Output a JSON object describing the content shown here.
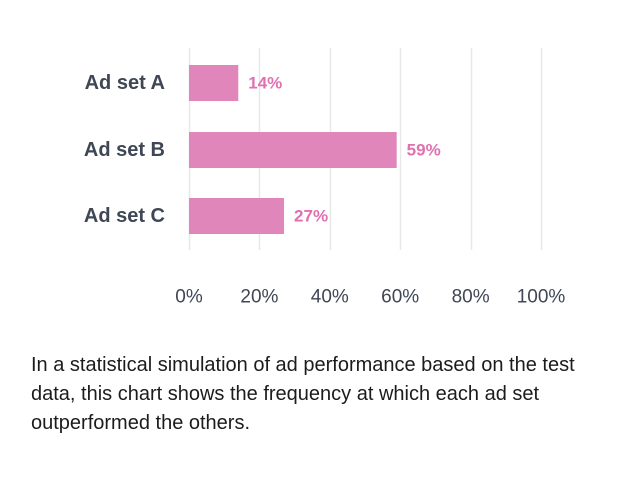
{
  "chart_data": {
    "type": "bar",
    "orientation": "horizontal",
    "categories": [
      "Ad set A",
      "Ad set B",
      "Ad set C"
    ],
    "values": [
      14,
      59,
      27
    ],
    "value_labels": [
      "14%",
      "59%",
      "27%"
    ],
    "xlim": [
      0,
      100
    ],
    "x_ticks": [
      0,
      20,
      40,
      60,
      80,
      100
    ],
    "x_tick_labels": [
      "0%",
      "20%",
      "40%",
      "60%",
      "80%",
      "100%"
    ],
    "grid": true,
    "legend": "none",
    "title": "",
    "xlabel": "",
    "ylabel": ""
  },
  "colors": {
    "bar": "#e086bb",
    "data_label": "#e070b0",
    "gridline": "#e8e8e8",
    "axis_text": "#3f4754"
  },
  "caption": "In a statistical simulation of ad performance based on the test data, this chart shows the frequency at which each ad set outperformed the others."
}
